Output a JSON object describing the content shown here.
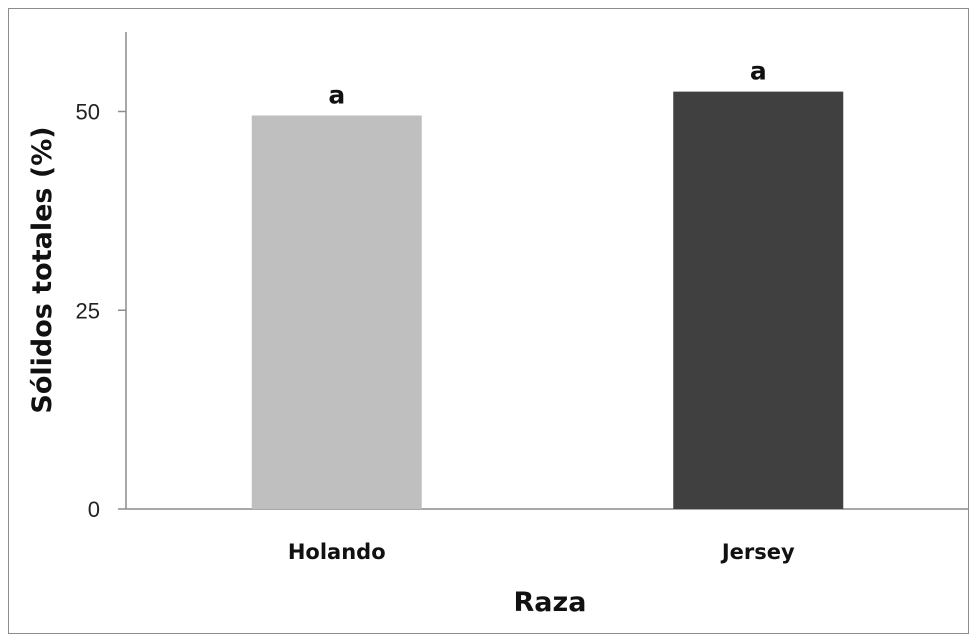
{
  "chart_data": {
    "type": "bar",
    "title": "",
    "xlabel": "Raza",
    "ylabel": "Sólidos totales (%)",
    "categories": [
      "Holando",
      "Jersey"
    ],
    "values": [
      49.5,
      52.5
    ],
    "data_labels": [
      "a",
      "a"
    ],
    "bar_colors": [
      "#bfbfbf",
      "#404040"
    ],
    "ylim": [
      0,
      60
    ],
    "yticks": [
      0,
      25,
      50
    ],
    "ytick_labels": [
      "0",
      "25",
      "50"
    ],
    "grid": false,
    "legend": "none"
  }
}
